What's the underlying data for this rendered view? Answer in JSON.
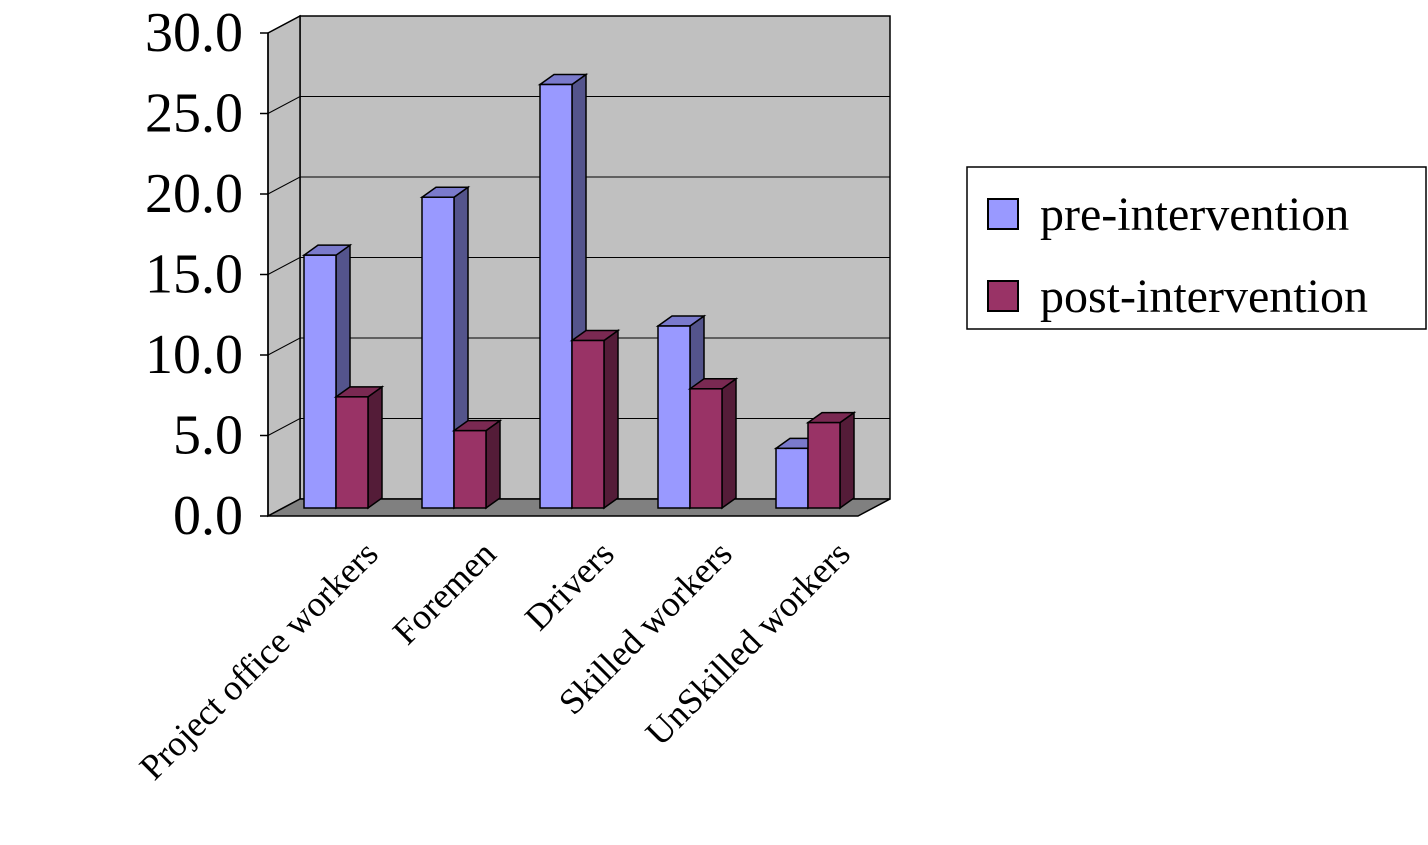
{
  "chart_data": {
    "type": "bar",
    "categories": [
      "Project office workers",
      "Foremen",
      "Drivers",
      "Skilled workers",
      "UnSkilled workers"
    ],
    "series": [
      {
        "name": "pre-intervention",
        "values": [
          16.2,
          19.8,
          26.8,
          11.8,
          4.2
        ],
        "color": "#9999ff"
      },
      {
        "name": "post-intervention",
        "values": [
          7.4,
          5.3,
          10.9,
          7.9,
          5.8
        ],
        "color": "#993366"
      }
    ],
    "y_ticks": [
      "0.0",
      "5.0",
      "10.0",
      "15.0",
      "20.0",
      "25.0",
      "30.0"
    ],
    "ylim": [
      0,
      30
    ],
    "grid": true,
    "legend_position": "right",
    "three_d": true,
    "wall_color": "#c0c0c0",
    "floor_color": "#808080"
  }
}
